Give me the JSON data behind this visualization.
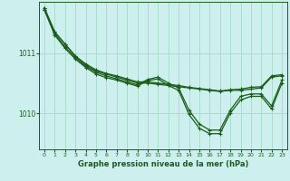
{
  "title": "Graphe pression niveau de la mer (hPa)",
  "bg_color": "#cdf0ee",
  "grid_color": "#aaddcc",
  "line_color": "#1a5c1a",
  "marker_color": "#1a5c1a",
  "xlim": [
    -0.5,
    23.5
  ],
  "ylim": [
    1009.4,
    1011.85
  ],
  "yticks": [
    1010,
    1011
  ],
  "xticks": [
    0,
    1,
    2,
    3,
    4,
    5,
    6,
    7,
    8,
    9,
    10,
    11,
    12,
    13,
    14,
    15,
    16,
    17,
    18,
    19,
    20,
    21,
    22,
    23
  ],
  "series": [
    [
      1011.75,
      1011.35,
      1011.15,
      1010.95,
      1010.8,
      1010.7,
      1010.65,
      1010.6,
      1010.55,
      1010.5,
      1010.5,
      1010.48,
      1010.46,
      1010.44,
      1010.42,
      1010.4,
      1010.38,
      1010.36,
      1010.38,
      1010.38,
      1010.4,
      1010.42,
      1010.6,
      1010.62
    ],
    [
      1011.75,
      1011.35,
      1011.15,
      1010.95,
      1010.82,
      1010.72,
      1010.66,
      1010.62,
      1010.57,
      1010.52,
      1010.52,
      1010.5,
      1010.48,
      1010.46,
      1010.43,
      1010.41,
      1010.39,
      1010.37,
      1010.39,
      1010.4,
      1010.43,
      1010.44,
      1010.62,
      1010.64
    ],
    [
      1011.72,
      1011.32,
      1011.1,
      1010.92,
      1010.78,
      1010.68,
      1010.62,
      1010.57,
      1010.52,
      1010.47,
      1010.56,
      1010.6,
      1010.5,
      1010.42,
      1010.05,
      1009.82,
      1009.72,
      1009.72,
      1010.05,
      1010.28,
      1010.32,
      1010.32,
      1010.12,
      1010.55
    ],
    [
      1011.72,
      1011.3,
      1011.08,
      1010.9,
      1010.76,
      1010.65,
      1010.59,
      1010.55,
      1010.5,
      1010.45,
      1010.54,
      1010.57,
      1010.46,
      1010.38,
      1009.98,
      1009.75,
      1009.66,
      1009.66,
      1010.0,
      1010.22,
      1010.28,
      1010.28,
      1010.07,
      1010.5
    ]
  ]
}
